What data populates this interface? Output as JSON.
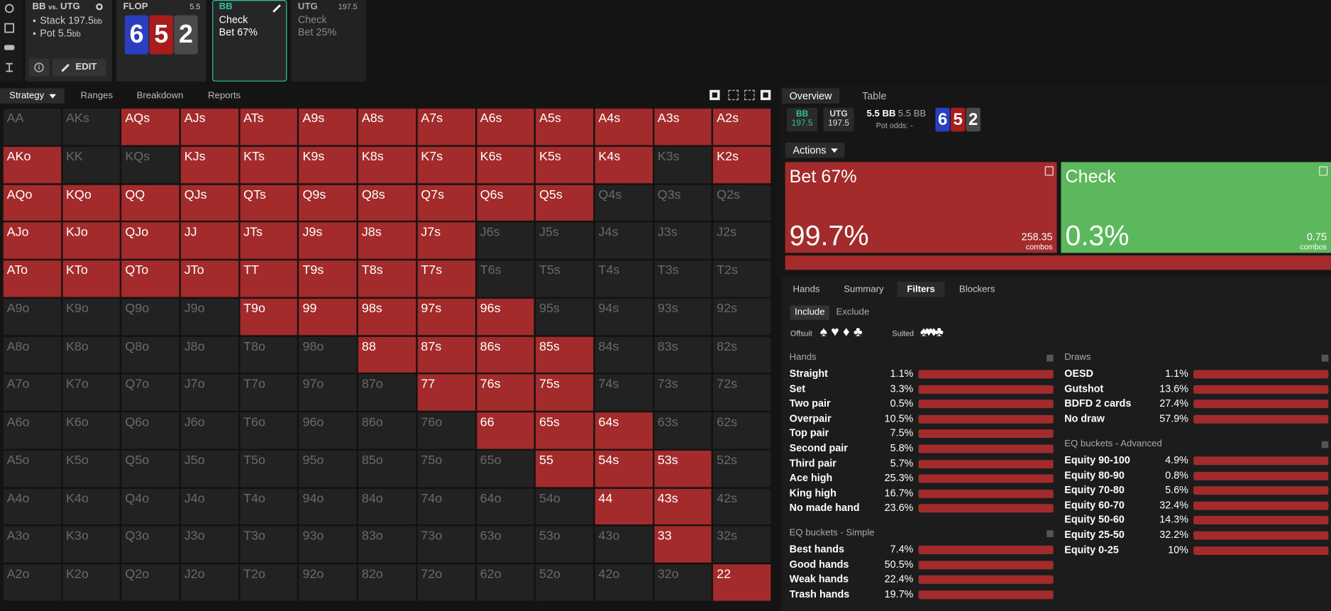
{
  "spot": {
    "title_left": "BB",
    "title_vs": "vs.",
    "title_right": "UTG",
    "stack_label": "Stack",
    "stack": "197.5",
    "stack_unit": "bb",
    "pot_label": "Pot",
    "pot": "5.5",
    "pot_unit": "bb",
    "edit": "EDIT"
  },
  "flop": {
    "label": "FLOP",
    "pot": "5.5",
    "cards": [
      "6",
      "5",
      "2"
    ],
    "card_colors": [
      "#2a3ec0",
      "#a81c1c",
      "#4a4a4a"
    ]
  },
  "nodes": [
    {
      "player": "BB",
      "actions": [
        "Check",
        "Bet 67%"
      ]
    },
    {
      "player": "UTG",
      "stack": "197.5",
      "actions": [
        "Check",
        "Bet 25%"
      ]
    }
  ],
  "left_tabs": [
    "Strategy",
    "Ranges",
    "Breakdown",
    "Reports"
  ],
  "matrix": {
    "hands": [
      [
        "AA",
        "AKs",
        "AQs",
        "AJs",
        "ATs",
        "A9s",
        "A8s",
        "A7s",
        "A6s",
        "A5s",
        "A4s",
        "A3s",
        "A2s"
      ],
      [
        "AKo",
        "KK",
        "KQs",
        "KJs",
        "KTs",
        "K9s",
        "K8s",
        "K7s",
        "K6s",
        "K5s",
        "K4s",
        "K3s",
        "K2s"
      ],
      [
        "AQo",
        "KQo",
        "QQ",
        "QJs",
        "QTs",
        "Q9s",
        "Q8s",
        "Q7s",
        "Q6s",
        "Q5s",
        "Q4s",
        "Q3s",
        "Q2s"
      ],
      [
        "AJo",
        "KJo",
        "QJo",
        "JJ",
        "JTs",
        "J9s",
        "J8s",
        "J7s",
        "J6s",
        "J5s",
        "J4s",
        "J3s",
        "J2s"
      ],
      [
        "ATo",
        "KTo",
        "QTo",
        "JTo",
        "TT",
        "T9s",
        "T8s",
        "T7s",
        "T6s",
        "T5s",
        "T4s",
        "T3s",
        "T2s"
      ],
      [
        "A9o",
        "K9o",
        "Q9o",
        "J9o",
        "T9o",
        "99",
        "98s",
        "97s",
        "96s",
        "95s",
        "94s",
        "93s",
        "92s"
      ],
      [
        "A8o",
        "K8o",
        "Q8o",
        "J8o",
        "T8o",
        "98o",
        "88",
        "87s",
        "86s",
        "85s",
        "84s",
        "83s",
        "82s"
      ],
      [
        "A7o",
        "K7o",
        "Q7o",
        "J7o",
        "T7o",
        "97o",
        "87o",
        "77",
        "76s",
        "75s",
        "74s",
        "73s",
        "72s"
      ],
      [
        "A6o",
        "K6o",
        "Q6o",
        "J6o",
        "T6o",
        "96o",
        "86o",
        "76o",
        "66",
        "65s",
        "64s",
        "63s",
        "62s"
      ],
      [
        "A5o",
        "K5o",
        "Q5o",
        "J5o",
        "T5o",
        "95o",
        "85o",
        "75o",
        "65o",
        "55",
        "54s",
        "53s",
        "52s"
      ],
      [
        "A4o",
        "K4o",
        "Q4o",
        "J4o",
        "T4o",
        "94o",
        "84o",
        "74o",
        "64o",
        "54o",
        "44",
        "43s",
        "42s"
      ],
      [
        "A3o",
        "K3o",
        "Q3o",
        "J3o",
        "T3o",
        "93o",
        "83o",
        "73o",
        "63o",
        "53o",
        "43o",
        "33",
        "32s"
      ],
      [
        "A2o",
        "K2o",
        "Q2o",
        "J2o",
        "T2o",
        "92o",
        "82o",
        "72o",
        "62o",
        "52o",
        "42o",
        "32o",
        "22"
      ]
    ],
    "in_range": [
      [
        false,
        false,
        true,
        true,
        true,
        true,
        true,
        true,
        true,
        true,
        true,
        true,
        true
      ],
      [
        true,
        false,
        false,
        true,
        true,
        true,
        true,
        true,
        true,
        true,
        true,
        false,
        true
      ],
      [
        true,
        true,
        true,
        true,
        true,
        true,
        true,
        true,
        true,
        true,
        false,
        false,
        false
      ],
      [
        true,
        true,
        true,
        true,
        true,
        true,
        true,
        true,
        false,
        false,
        false,
        false,
        false
      ],
      [
        true,
        true,
        true,
        true,
        true,
        true,
        true,
        true,
        false,
        false,
        false,
        false,
        false
      ],
      [
        false,
        false,
        false,
        false,
        true,
        true,
        true,
        true,
        true,
        false,
        false,
        false,
        false
      ],
      [
        false,
        false,
        false,
        false,
        false,
        false,
        true,
        true,
        true,
        true,
        false,
        false,
        false
      ],
      [
        false,
        false,
        false,
        false,
        false,
        false,
        false,
        true,
        true,
        true,
        false,
        false,
        false
      ],
      [
        false,
        false,
        false,
        false,
        false,
        false,
        false,
        false,
        true,
        true,
        true,
        false,
        false
      ],
      [
        false,
        false,
        false,
        false,
        false,
        false,
        false,
        false,
        false,
        true,
        true,
        true,
        false
      ],
      [
        false,
        false,
        false,
        false,
        false,
        false,
        false,
        false,
        false,
        false,
        true,
        true,
        false
      ],
      [
        false,
        false,
        false,
        false,
        false,
        false,
        false,
        false,
        false,
        false,
        false,
        true,
        false
      ],
      [
        false,
        false,
        false,
        false,
        false,
        false,
        false,
        false,
        false,
        false,
        false,
        false,
        true
      ]
    ]
  },
  "right_tabs": [
    "Overview",
    "Table"
  ],
  "players": [
    {
      "name": "BB",
      "stack": "197.5"
    },
    {
      "name": "UTG",
      "stack": "197.5"
    }
  ],
  "pot": [
    "5.5 BB",
    "5.5 BB"
  ],
  "pot_odds": "Pot odds: -",
  "board": [
    "6",
    "5",
    "2"
  ],
  "actions_label": "Actions",
  "actions": [
    {
      "name": "Bet 67%",
      "frequency": "99.7%",
      "combos": "258.35",
      "combos_label": "combos",
      "color": "#a32b2b"
    },
    {
      "name": "Check",
      "frequency": "0.3%",
      "combos": "0.75",
      "combos_label": "combos",
      "color": "#5cb85c"
    }
  ],
  "sub_tabs": [
    "Hands",
    "Summary",
    "Filters",
    "Blockers"
  ],
  "filter_modes": [
    "Include",
    "Exclude"
  ],
  "offsuit_label": "Offsuit",
  "offsuit_icons": "♠ ♥ ♦ ♣",
  "suited_label": "Suited",
  "suited_icons": "♠♥♦♣",
  "filter_groups": [
    {
      "title": "Hands",
      "rows": [
        [
          "Straight",
          "1.1%"
        ],
        [
          "Set",
          "3.3%"
        ],
        [
          "Two pair",
          "0.5%"
        ],
        [
          "Overpair",
          "10.5%"
        ],
        [
          "Top pair",
          "7.5%"
        ],
        [
          "Second pair",
          "5.8%"
        ],
        [
          "Third pair",
          "5.7%"
        ],
        [
          "Ace high",
          "25.3%"
        ],
        [
          "King high",
          "16.7%"
        ],
        [
          "No made hand",
          "23.6%"
        ]
      ]
    },
    {
      "title": "EQ buckets - Simple",
      "rows": [
        [
          "Best hands",
          "7.4%"
        ],
        [
          "Good hands",
          "50.5%"
        ],
        [
          "Weak hands",
          "22.4%"
        ],
        [
          "Trash hands",
          "19.7%"
        ]
      ]
    },
    {
      "title": "Draws",
      "rows": [
        [
          "OESD",
          "1.1%"
        ],
        [
          "Gutshot",
          "13.6%"
        ],
        [
          "BDFD 2 cards",
          "27.4%"
        ],
        [
          "No draw",
          "57.9%"
        ]
      ]
    },
    {
      "title": "EQ buckets - Advanced",
      "rows": [
        [
          "Equity 90-100",
          "4.9%"
        ],
        [
          "Equity 80-90",
          "0.8%"
        ],
        [
          "Equity 70-80",
          "5.6%"
        ],
        [
          "Equity 60-70",
          "32.4%"
        ],
        [
          "Equity 50-60",
          "14.3%"
        ],
        [
          "Equity 25-50",
          "32.2%"
        ],
        [
          "Equity 0-25",
          "10%"
        ]
      ]
    }
  ]
}
